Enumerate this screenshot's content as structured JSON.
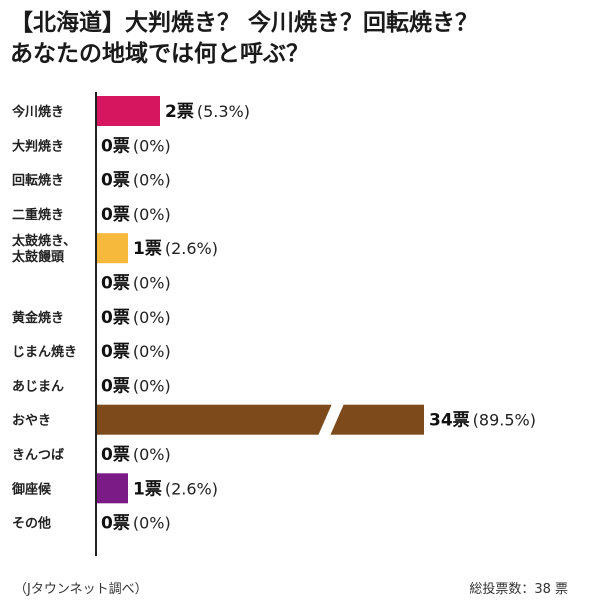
{
  "title": {
    "line1": "【北海道】大判焼き？ 今川焼き？回転焼き？",
    "line2": "あなたの地域では何と呼ぶ？"
  },
  "footer": {
    "source": "（Jタウンネット調べ）",
    "total": "総投票数：38 票"
  },
  "colors": {
    "axis": "#222222",
    "break": "#ffffff"
  },
  "chart_data": {
    "type": "bar",
    "orientation": "horizontal",
    "axis_break": true,
    "unit": "票",
    "categories": [
      [
        "今川焼き"
      ],
      [
        "大判焼き"
      ],
      [
        "回転焼き"
      ],
      [
        "二重焼き"
      ],
      [
        "太鼓焼き、",
        "太鼓饅頭"
      ],
      [],
      [
        "黄金焼き"
      ],
      [
        "じまん焼き"
      ],
      [
        "あじまん"
      ],
      [
        "おやき"
      ],
      [
        "きんつば"
      ],
      [
        "御座候"
      ],
      [
        "その他"
      ]
    ],
    "values": [
      2,
      0,
      0,
      0,
      1,
      0,
      0,
      0,
      0,
      34,
      0,
      1,
      0
    ],
    "percent_labels": [
      "(5.3%)",
      "(0%)",
      "(0%)",
      "(0%)",
      "(2.6%)",
      "(0%)",
      "(0%)",
      "(0%)",
      "(0%)",
      "(89.5%)",
      "(0%)",
      "(2.6%)",
      "(0%)"
    ],
    "bar_colors": [
      "#d6175f",
      "#d6175f",
      "#d6175f",
      "#d6175f",
      "#f7b93b",
      "#f7b93b",
      "#f7b93b",
      "#f7b93b",
      "#f7b93b",
      "#7d4a1c",
      "#7d4a1c",
      "#7b1b86",
      "#7b1b86"
    ]
  }
}
